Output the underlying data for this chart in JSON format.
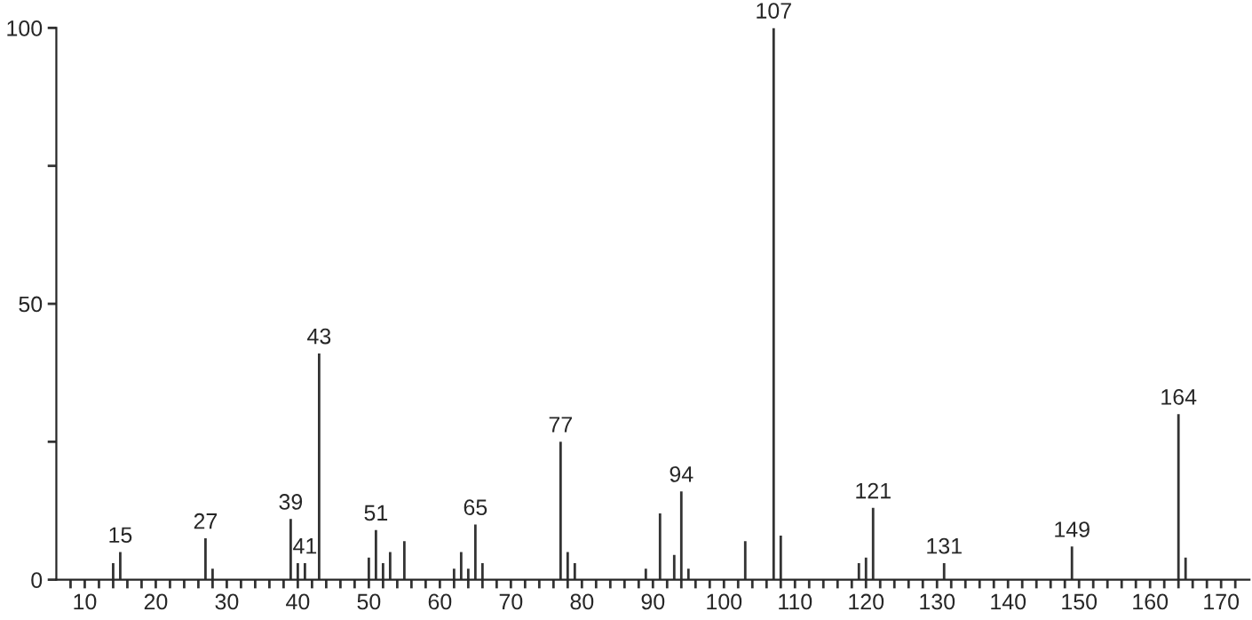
{
  "chart_data": {
    "type": "bar",
    "x": [
      14,
      15,
      27,
      28,
      39,
      40,
      41,
      43,
      50,
      51,
      52,
      53,
      55,
      62,
      63,
      64,
      65,
      66,
      77,
      78,
      79,
      89,
      91,
      93,
      94,
      95,
      103,
      107,
      108,
      119,
      120,
      121,
      131,
      149,
      164,
      165
    ],
    "values": [
      3,
      5,
      7.5,
      2,
      11,
      3,
      3,
      41,
      4,
      9,
      3,
      5,
      7,
      2,
      5,
      2,
      10,
      3,
      25,
      5,
      3,
      2,
      12,
      4.5,
      16,
      2,
      7,
      100,
      8,
      3,
      4,
      13,
      3,
      6,
      30,
      4
    ],
    "color": "#333333",
    "xlim": [
      6,
      174
    ],
    "ylim": [
      0,
      100
    ],
    "yticks": [
      0,
      {
        "value": 25,
        "label": null
      },
      50,
      {
        "value": 75,
        "label": null
      },
      100
    ],
    "xticks": [
      {
        "value": 8,
        "label": null
      },
      10,
      {
        "value": 12,
        "label": null
      },
      {
        "value": 14,
        "label": null
      },
      {
        "value": 16,
        "label": null
      },
      {
        "value": 18,
        "label": null
      },
      20,
      {
        "value": 22,
        "label": null
      },
      {
        "value": 24,
        "label": null
      },
      {
        "value": 26,
        "label": null
      },
      {
        "value": 28,
        "label": null
      },
      30,
      {
        "value": 32,
        "label": null
      },
      {
        "value": 34,
        "label": null
      },
      {
        "value": 36,
        "label": null
      },
      {
        "value": 38,
        "label": null
      },
      40,
      {
        "value": 42,
        "label": null
      },
      {
        "value": 44,
        "label": null
      },
      {
        "value": 46,
        "label": null
      },
      {
        "value": 48,
        "label": null
      },
      50,
      {
        "value": 52,
        "label": null
      },
      {
        "value": 54,
        "label": null
      },
      {
        "value": 56,
        "label": null
      },
      {
        "value": 58,
        "label": null
      },
      60,
      {
        "value": 62,
        "label": null
      },
      {
        "value": 64,
        "label": null
      },
      {
        "value": 66,
        "label": null
      },
      {
        "value": 68,
        "label": null
      },
      70,
      {
        "value": 72,
        "label": null
      },
      {
        "value": 74,
        "label": null
      },
      {
        "value": 76,
        "label": null
      },
      {
        "value": 78,
        "label": null
      },
      80,
      {
        "value": 82,
        "label": null
      },
      {
        "value": 84,
        "label": null
      },
      {
        "value": 86,
        "label": null
      },
      {
        "value": 88,
        "label": null
      },
      90,
      {
        "value": 92,
        "label": null
      },
      {
        "value": 94,
        "label": null
      },
      {
        "value": 96,
        "label": null
      },
      {
        "value": 98,
        "label": null
      },
      100,
      {
        "value": 102,
        "label": null
      },
      {
        "value": 104,
        "label": null
      },
      {
        "value": 106,
        "label": null
      },
      {
        "value": 108,
        "label": null
      },
      110,
      {
        "value": 112,
        "label": null
      },
      {
        "value": 114,
        "label": null
      },
      {
        "value": 116,
        "label": null
      },
      {
        "value": 118,
        "label": null
      },
      120,
      {
        "value": 122,
        "label": null
      },
      {
        "value": 124,
        "label": null
      },
      {
        "value": 126,
        "label": null
      },
      {
        "value": 128,
        "label": null
      },
      130,
      {
        "value": 132,
        "label": null
      },
      {
        "value": 134,
        "label": null
      },
      {
        "value": 136,
        "label": null
      },
      {
        "value": 138,
        "label": null
      },
      140,
      {
        "value": 142,
        "label": null
      },
      {
        "value": 144,
        "label": null
      },
      {
        "value": 146,
        "label": null
      },
      {
        "value": 148,
        "label": null
      },
      150,
      {
        "value": 152,
        "label": null
      },
      {
        "value": 154,
        "label": null
      },
      {
        "value": 156,
        "label": null
      },
      {
        "value": 158,
        "label": null
      },
      160,
      {
        "value": 162,
        "label": null
      },
      {
        "value": 164,
        "label": null
      },
      {
        "value": 166,
        "label": null
      },
      {
        "value": 168,
        "label": null
      },
      170,
      {
        "value": 172,
        "label": null
      }
    ],
    "annotations": [
      {
        "text": "15",
        "x": 15,
        "y": 5
      },
      {
        "text": "27",
        "x": 27,
        "y": 7.5
      },
      {
        "text": "39",
        "x": 39,
        "y": 11
      },
      {
        "text": "41",
        "x": 41,
        "y": 3
      },
      {
        "text": "43",
        "x": 43,
        "y": 41
      },
      {
        "text": "51",
        "x": 51,
        "y": 9
      },
      {
        "text": "65",
        "x": 65,
        "y": 10
      },
      {
        "text": "77",
        "x": 77,
        "y": 25
      },
      {
        "text": "94",
        "x": 94,
        "y": 16
      },
      {
        "text": "107",
        "x": 107,
        "y": 100
      },
      {
        "text": "121",
        "x": 121,
        "y": 13
      },
      {
        "text": "131",
        "x": 131,
        "y": 3
      },
      {
        "text": "149",
        "x": 149,
        "y": 6
      },
      {
        "text": "164",
        "x": 164,
        "y": 30
      }
    ],
    "grid": false
  }
}
